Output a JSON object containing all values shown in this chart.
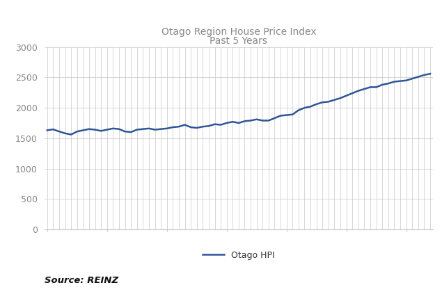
{
  "title_line1": "Otago Region House Price Index",
  "title_line2": "Past 5 Years",
  "legend_label": "Otago HPI",
  "source_text": "Source: REINZ",
  "ylim": [
    0,
    3000
  ],
  "yticks": [
    0,
    500,
    1000,
    1500,
    2000,
    2500,
    3000
  ],
  "line_color": "#2E5597",
  "line_width": 1.8,
  "grid_color": "#C8C8C8",
  "background_color": "#FFFFFF",
  "title_color": "#888888",
  "tick_color": "#888888",
  "values": [
    1630,
    1645,
    1610,
    1580,
    1560,
    1610,
    1630,
    1650,
    1640,
    1620,
    1640,
    1660,
    1650,
    1610,
    1600,
    1640,
    1650,
    1660,
    1640,
    1650,
    1660,
    1680,
    1690,
    1720,
    1680,
    1670,
    1690,
    1700,
    1730,
    1720,
    1750,
    1770,
    1750,
    1780,
    1790,
    1810,
    1790,
    1790,
    1830,
    1870,
    1880,
    1890,
    1960,
    2000,
    2020,
    2060,
    2090,
    2100,
    2130,
    2160,
    2200,
    2240,
    2280,
    2310,
    2340,
    2340,
    2380,
    2400,
    2430,
    2440,
    2450,
    2480,
    2510,
    2540,
    2560
  ]
}
